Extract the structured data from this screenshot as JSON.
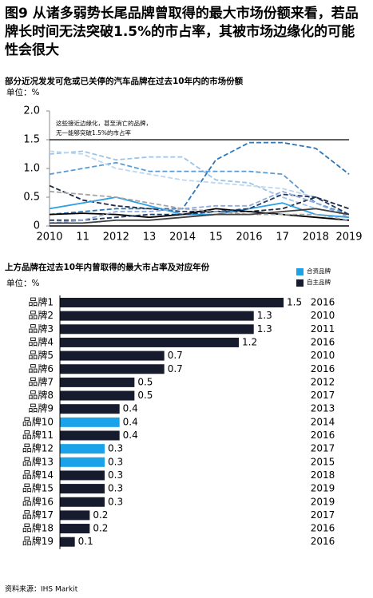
{
  "title": "图9 从诸多弱势长尾品牌曾取得的最大市场份额来看，若品牌长时间无法突破1.5%的市占率，其被市场边缘化的可能性会很大",
  "source": "资料来源：IHS Markit",
  "chart_data": [
    {
      "type": "line",
      "title": "部分近况发发可危或已关停的汽车品牌在过去10年内的市场份额",
      "unit": "单位：%",
      "annotation": [
        "这些接近边缘化，甚至消亡的品牌，",
        "无一能够突破1.5%的市占率"
      ],
      "categories": [
        "2010",
        "11",
        "2012",
        "13",
        "2014",
        "15",
        "2016",
        "17",
        "2018",
        "2019"
      ],
      "ylim": [
        0,
        2
      ],
      "yticks": [
        0,
        0.5,
        {
          "value": 1,
          "label": "1.0"
        },
        1.5,
        {
          "value": 2,
          "label": "2.0"
        }
      ],
      "reference_line": 1.5,
      "series": [
        {
          "color": "#9dc3e6",
          "style": "dashed",
          "values": [
            1.25,
            1.3,
            1.15,
            1.2,
            1.2,
            0.8,
            0.75,
            0.5,
            0.3,
            0.2
          ]
        },
        {
          "color": "#5b9bd5",
          "style": "dashed",
          "values": [
            0.9,
            1.0,
            1.1,
            0.95,
            0.95,
            0.95,
            0.95,
            0.9,
            0.4,
            0.2
          ]
        },
        {
          "color": "#2e75b6",
          "style": "dashed",
          "values": [
            0.2,
            0.25,
            0.3,
            0.3,
            0.3,
            1.15,
            1.45,
            1.45,
            1.35,
            0.9
          ]
        },
        {
          "color": "#bdd7ee",
          "style": "dashed",
          "values": [
            1.3,
            1.25,
            1.0,
            0.9,
            0.8,
            0.75,
            0.7,
            0.65,
            0.5,
            0.3
          ]
        },
        {
          "color": "#1f2a44",
          "style": "dashed",
          "values": [
            0.7,
            0.45,
            0.35,
            0.3,
            0.25,
            0.25,
            0.25,
            0.3,
            0.5,
            0.3
          ]
        },
        {
          "color": "#2e9fe0",
          "style": "solid",
          "values": [
            0.3,
            0.4,
            0.5,
            0.35,
            0.2,
            0.2,
            0.3,
            0.4,
            0.2,
            0.15
          ]
        },
        {
          "color": "#000000",
          "style": "solid",
          "values": [
            0.2,
            0.22,
            0.2,
            0.15,
            0.2,
            0.3,
            0.25,
            0.2,
            0.15,
            0.1
          ]
        },
        {
          "color": "#203864",
          "style": "dashed",
          "values": [
            0.1,
            0.1,
            0.15,
            0.2,
            0.2,
            0.25,
            0.3,
            0.55,
            0.5,
            0.2
          ]
        },
        {
          "color": "#8faadc",
          "style": "dashed",
          "values": [
            0.05,
            0.1,
            0.25,
            0.25,
            0.3,
            0.35,
            0.35,
            0.6,
            0.4,
            0.15
          ]
        },
        {
          "color": "#a6a6a6",
          "style": "dashed",
          "values": [
            0.6,
            0.55,
            0.5,
            0.4,
            0.3,
            0.25,
            0.2,
            0.2,
            0.2,
            0.1
          ]
        },
        {
          "color": "#404040",
          "style": "solid",
          "values": [
            0.05,
            0.05,
            0.1,
            0.1,
            0.15,
            0.2,
            0.2,
            0.25,
            0.3,
            0.2
          ]
        }
      ]
    },
    {
      "type": "hbar",
      "title": "上方品牌在过去10年内曾取得的最大市占率及对应年份",
      "unit": "单位：%",
      "legend": "top-right",
      "categories": [
        "品牌1",
        "品牌2",
        "品牌3",
        "品牌4",
        "品牌5",
        "品牌6",
        "品牌7",
        "品牌8",
        "品牌9",
        "品牌10",
        "品牌11",
        "品牌12",
        "品牌13",
        "品牌14",
        "品牌15",
        "品牌16",
        "品牌17",
        "品牌18",
        "品牌19"
      ],
      "years": [
        2016,
        2010,
        2011,
        2016,
        2010,
        2016,
        2012,
        2017,
        2013,
        2014,
        2016,
        2017,
        2015,
        2018,
        2019,
        2019,
        2017,
        2016,
        2016
      ],
      "series": [
        {
          "name": "合资品牌",
          "color": "#1aa3e8",
          "values": [
            null,
            null,
            null,
            null,
            null,
            null,
            null,
            null,
            null,
            0.4,
            null,
            0.3,
            0.3,
            null,
            null,
            null,
            null,
            null,
            null
          ]
        },
        {
          "name": "自主品牌",
          "color": "#161c2e",
          "values": [
            1.5,
            1.3,
            1.3,
            1.2,
            0.7,
            0.7,
            0.5,
            0.5,
            0.4,
            null,
            0.4,
            null,
            null,
            0.3,
            0.3,
            0.3,
            0.2,
            0.2,
            0.1
          ]
        }
      ]
    }
  ]
}
